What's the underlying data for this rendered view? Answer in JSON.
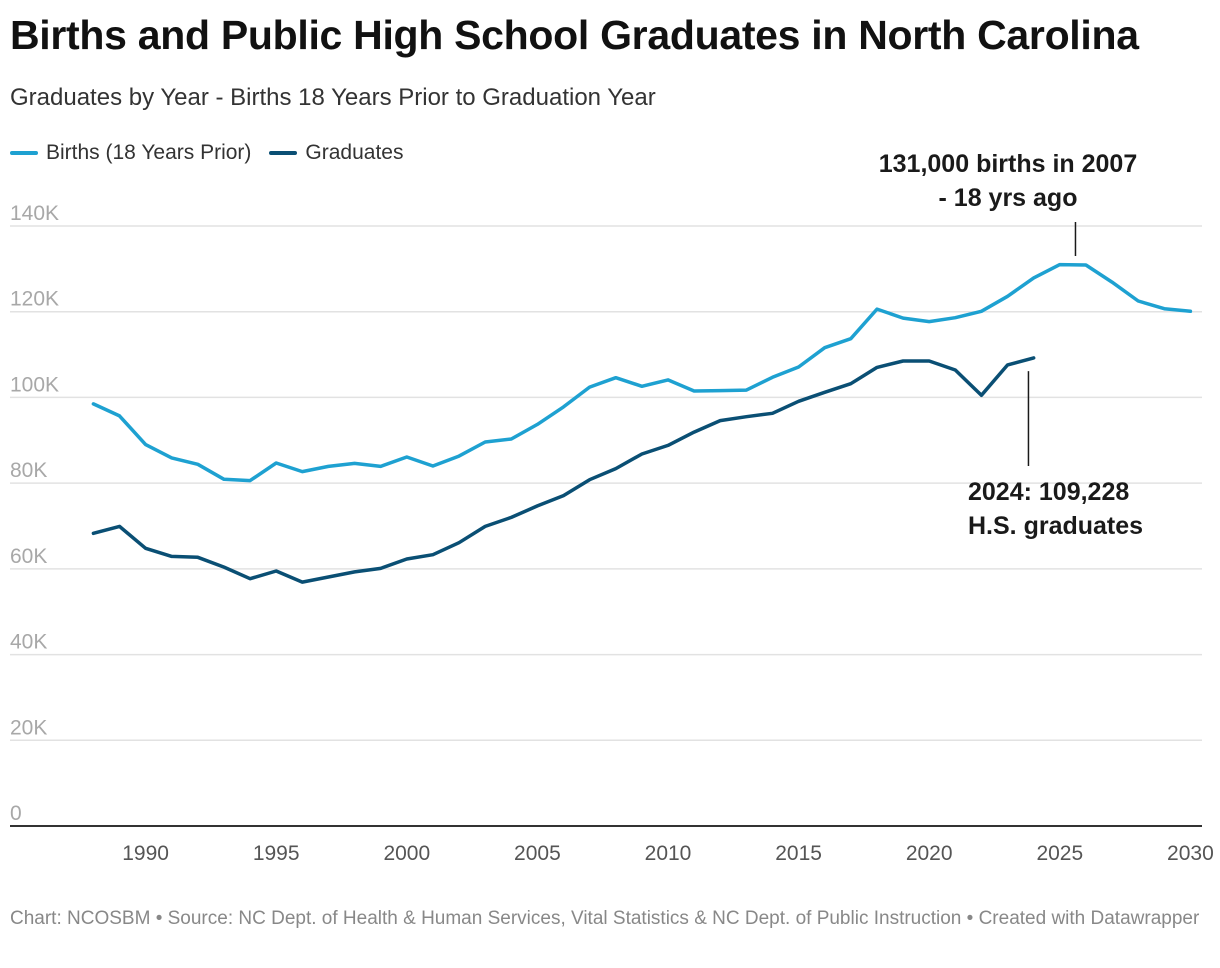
{
  "title": "Births and Public High School Graduates in North Carolina",
  "subtitle": "Graduates by Year - Births 18 Years Prior to Graduation Year",
  "footer": "Chart: NCOSBM • Source: NC Dept. of Health & Human Services, Vital Statistics & NC Dept. of Public Instruction • Created with Datawrapper",
  "colors": {
    "births": "#1ea1d1",
    "graduates": "#0a4f74"
  },
  "chart_data": {
    "type": "line",
    "title": "Births and Public High School Graduates in North Carolina",
    "subtitle": "Graduates by Year - Births 18 Years Prior to Graduation Year",
    "xlabel": "",
    "ylabel": "",
    "xlim": [
      1986,
      2031
    ],
    "ylim": [
      0,
      140000
    ],
    "grid": true,
    "legend_position": "top-left",
    "y_ticks": [
      {
        "value": 0,
        "label": "0"
      },
      {
        "value": 20000,
        "label": "20K"
      },
      {
        "value": 40000,
        "label": "40K"
      },
      {
        "value": 60000,
        "label": "60K"
      },
      {
        "value": 80000,
        "label": "80K"
      },
      {
        "value": 100000,
        "label": "100K"
      },
      {
        "value": 120000,
        "label": "120K"
      },
      {
        "value": 140000,
        "label": "140K"
      }
    ],
    "x_ticks": [
      {
        "value": 1990,
        "label": "1990"
      },
      {
        "value": 1995,
        "label": "1995"
      },
      {
        "value": 2000,
        "label": "2000"
      },
      {
        "value": 2005,
        "label": "2005"
      },
      {
        "value": 2010,
        "label": "2010"
      },
      {
        "value": 2015,
        "label": "2015"
      },
      {
        "value": 2020,
        "label": "2020"
      },
      {
        "value": 2025,
        "label": "2025"
      },
      {
        "value": 2030,
        "label": "2030"
      }
    ],
    "series": [
      {
        "name": "Births (18 Years Prior)",
        "color": "#1ea1d1",
        "x": [
          1988,
          1989,
          1990,
          1991,
          1992,
          1993,
          1994,
          1995,
          1996,
          1997,
          1998,
          1999,
          2000,
          2001,
          2002,
          2003,
          2004,
          2005,
          2006,
          2007,
          2008,
          2009,
          2010,
          2011,
          2012,
          2013,
          2014,
          2015,
          2016,
          2017,
          2018,
          2019,
          2020,
          2021,
          2022,
          2023,
          2024,
          2025,
          2026,
          2027,
          2028,
          2029,
          2030
        ],
        "y": [
          98500,
          95700,
          89000,
          85900,
          84400,
          80900,
          80600,
          84700,
          82700,
          83900,
          84600,
          83900,
          86100,
          84000,
          86300,
          89600,
          90300,
          93700,
          97800,
          102400,
          104600,
          102600,
          104100,
          101500,
          101600,
          101700,
          104700,
          107100,
          111600,
          113700,
          120600,
          118500,
          117700,
          118600,
          120100,
          123600,
          127900,
          131000,
          130900,
          126900,
          122500,
          120700,
          120100
        ]
      },
      {
        "name": "Graduates",
        "color": "#0a4f74",
        "x": [
          1988,
          1989,
          1990,
          1991,
          1992,
          1993,
          1994,
          1995,
          1996,
          1997,
          1998,
          1999,
          2000,
          2001,
          2002,
          2003,
          2004,
          2005,
          2006,
          2007,
          2008,
          2009,
          2010,
          2011,
          2012,
          2013,
          2014,
          2015,
          2016,
          2017,
          2018,
          2019,
          2020,
          2021,
          2022,
          2023,
          2024
        ],
        "y": [
          68300,
          69900,
          64800,
          62900,
          62700,
          60400,
          57700,
          59500,
          56900,
          58100,
          59300,
          60100,
          62300,
          63300,
          66100,
          69900,
          72000,
          74700,
          77100,
          80800,
          83400,
          86800,
          88800,
          91900,
          94600,
          95500,
          96300,
          99100,
          101200,
          103200,
          107000,
          108500,
          108500,
          106400,
          100500,
          107600,
          109228
        ]
      }
    ],
    "annotations": [
      {
        "lines": [
          "131,000 births in 2007",
          "- 18 yrs ago"
        ],
        "x": 2025.6,
        "y": 131000
      },
      {
        "lines": [
          "2024: 109,228",
          "H.S. graduates"
        ],
        "x": 2023.8,
        "y": 108000
      }
    ]
  }
}
